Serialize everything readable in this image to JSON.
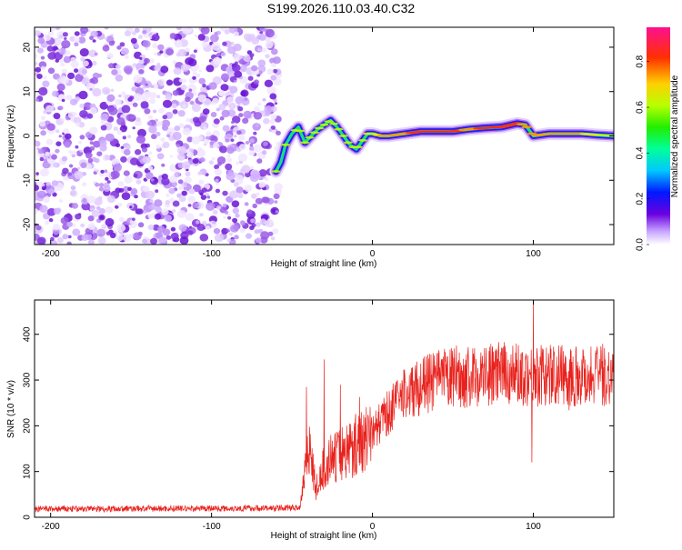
{
  "title": "S199.2026.110.03.40.C32",
  "chart_data": [
    {
      "type": "heatmap",
      "name": "spectrogram",
      "xlabel": "Height of straight line (km)",
      "ylabel": "Frequency (Hz)",
      "xlim": [
        -210,
        150
      ],
      "ylim": [
        -24.5,
        24.5
      ],
      "xticks": [
        -200,
        -100,
        0,
        100
      ],
      "yticks": [
        -20,
        -10,
        0,
        10,
        20
      ],
      "noise_region_x": [
        -210,
        -60
      ],
      "carrier_line": {
        "x": [
          -60,
          -57,
          -54,
          -50,
          -46,
          -42,
          -38,
          -34,
          -30,
          -26,
          -22,
          -18,
          -14,
          -10,
          -6,
          -3,
          0,
          5,
          10,
          20,
          30,
          40,
          50,
          60,
          70,
          80,
          90,
          95,
          100,
          110,
          120,
          130,
          140,
          150
        ],
        "y": [
          -8,
          -6,
          -2,
          0.5,
          2,
          -1.5,
          0,
          1.5,
          2.5,
          3.5,
          2,
          0,
          -2,
          -3,
          -1,
          0.5,
          0.5,
          0,
          0,
          0.5,
          1,
          1,
          1,
          1.5,
          1.8,
          2,
          2.8,
          2.5,
          0,
          0.5,
          0.5,
          0.5,
          0.2,
          0
        ],
        "amplitude": [
          0.5,
          0.45,
          0.55,
          0.45,
          0.6,
          0.5,
          0.55,
          0.6,
          0.5,
          0.55,
          0.5,
          0.55,
          0.5,
          0.55,
          0.5,
          0.65,
          0.6,
          0.7,
          0.75,
          0.8,
          0.85,
          0.9,
          0.85,
          0.8,
          0.85,
          0.9,
          0.85,
          0.75,
          0.7,
          0.8,
          0.75,
          0.7,
          0.6,
          0.55
        ]
      },
      "colorbar": {
        "label": "Normalized spectral amplitude",
        "range": [
          0,
          0.95
        ],
        "ticks": [
          0.0,
          0.2,
          0.4,
          0.6,
          0.8
        ]
      }
    },
    {
      "type": "line",
      "name": "snr",
      "xlabel": "Height of straight line (km)",
      "ylabel": "SNR (10 * v/v)",
      "xlim": [
        -210,
        150
      ],
      "ylim": [
        0,
        475
      ],
      "xticks": [
        -200,
        -100,
        0,
        100
      ],
      "yticks": [
        0,
        100,
        200,
        300,
        400
      ],
      "color": "#e8221d",
      "envelope": {
        "x": [
          -210,
          -60,
          -45,
          -40,
          -35,
          -30,
          -20,
          -10,
          0,
          10,
          20,
          30,
          40,
          50,
          60,
          80,
          100,
          120,
          150
        ],
        "y": [
          18,
          20,
          22,
          170,
          60,
          110,
          140,
          160,
          185,
          230,
          270,
          285,
          300,
          305,
          305,
          315,
          310,
          310,
          312
        ]
      },
      "spikes": [
        {
          "x": -41,
          "y": 285
        },
        {
          "x": -30,
          "y": 345
        },
        {
          "x": -20,
          "y": 290
        },
        {
          "x": 100,
          "y": 475
        },
        {
          "x": 99,
          "y": 120
        }
      ]
    }
  ]
}
